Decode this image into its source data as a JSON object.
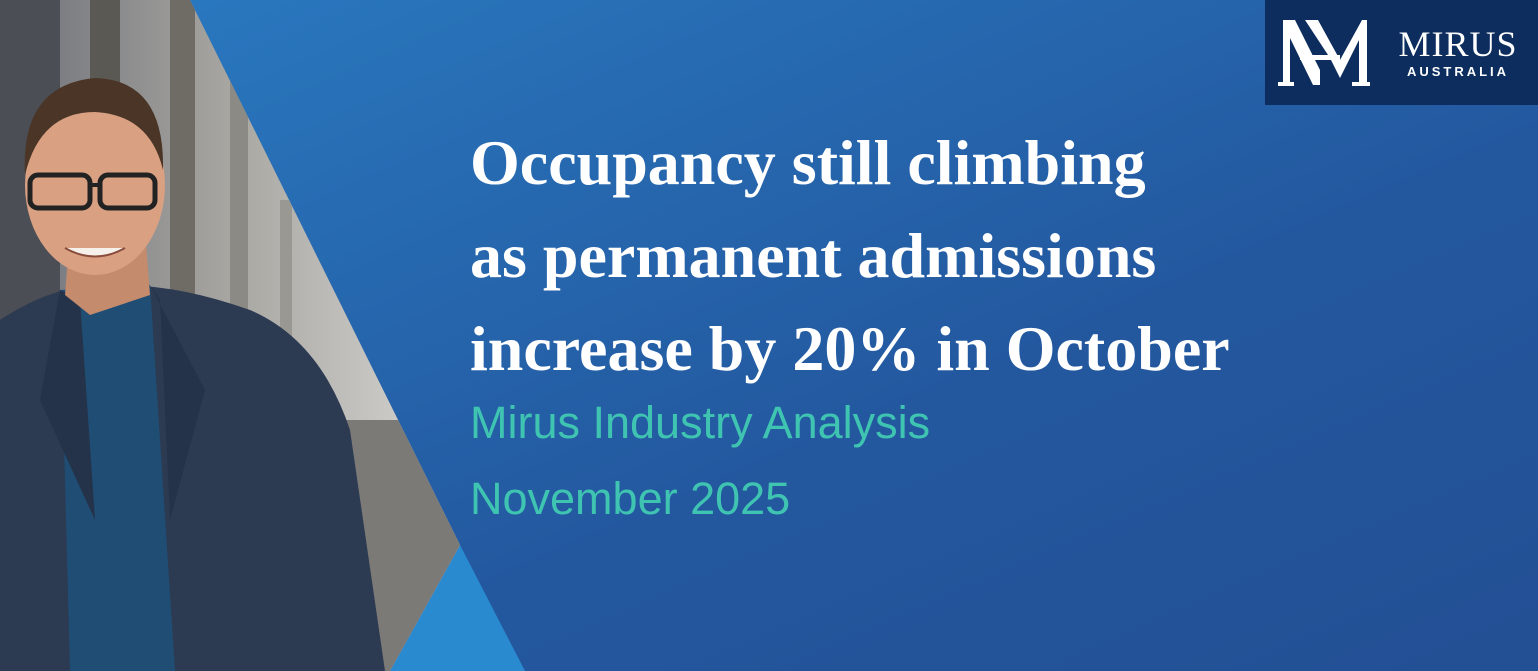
{
  "logo": {
    "name": "MIRUS",
    "region": "AUSTRALIA"
  },
  "headline": {
    "lines": [
      "Occupancy still climbing",
      "as permanent admissions",
      "increase by 20% in October"
    ]
  },
  "subtitle": {
    "lines": [
      "Mirus Industry Analysis",
      "November 2025"
    ]
  }
}
